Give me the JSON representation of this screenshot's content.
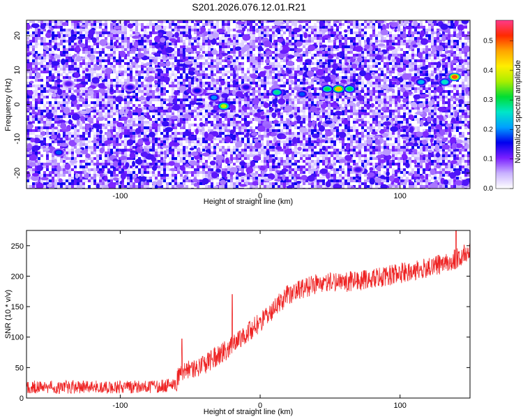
{
  "title": "S201.2026.076.12.01.R21",
  "colors": {
    "line": "#ee2222",
    "frame": "#000000",
    "colormap": [
      "#ffffff",
      "#c9b2ff",
      "#7a1fff",
      "#0000ee",
      "#00a0ff",
      "#00e6c8",
      "#00dd33",
      "#aaee00",
      "#ffee00",
      "#ffa500",
      "#ff2a00",
      "#ff3a8a"
    ]
  },
  "chart_data": [
    {
      "type": "heatmap",
      "title": "S201.2026.076.12.01.R21",
      "xlabel": "Height of straight line (km)",
      "ylabel": "Frequency (Hz)",
      "xlim": [
        -167,
        150
      ],
      "ylim": [
        -24.5,
        24.5
      ],
      "xticks": [
        "-100",
        "0",
        "100"
      ],
      "yticks": [
        "20",
        "10",
        "0",
        "-10",
        "-20"
      ],
      "colorbar_label": "Normalized spectral amplitude",
      "colorbar_range": [
        0.0,
        0.57
      ],
      "colorbar_ticks": [
        "0.0",
        "0.1",
        "0.2",
        "0.3",
        "0.4",
        "0.5"
      ],
      "background": "noisy purple/white speckle with amplitude mostly below 0.15",
      "peaks": [
        {
          "x": -144,
          "y": -14,
          "amp": 0.18
        },
        {
          "x": -137,
          "y": 6,
          "amp": 0.12
        },
        {
          "x": -93,
          "y": 5,
          "amp": 0.14
        },
        {
          "x": -45,
          "y": 4,
          "amp": 0.15
        },
        {
          "x": -33,
          "y": 2,
          "amp": 0.2
        },
        {
          "x": -26,
          "y": -0.5,
          "amp": 0.38
        },
        {
          "x": -10,
          "y": 5,
          "amp": 0.14
        },
        {
          "x": 12,
          "y": 3.5,
          "amp": 0.28
        },
        {
          "x": 30,
          "y": 3,
          "amp": 0.18
        },
        {
          "x": 48,
          "y": 4.5,
          "amp": 0.3
        },
        {
          "x": 56,
          "y": 4.5,
          "amp": 0.45
        },
        {
          "x": 64,
          "y": 4.5,
          "amp": 0.3
        },
        {
          "x": 70,
          "y": -19,
          "amp": 0.13
        },
        {
          "x": 115,
          "y": 6.5,
          "amp": 0.22
        },
        {
          "x": 132,
          "y": 6.5,
          "amp": 0.26
        },
        {
          "x": 139,
          "y": 8,
          "amp": 0.5
        }
      ]
    },
    {
      "type": "line",
      "xlabel": "Height of straight line (km)",
      "ylabel": "SNR (10 * v/v)",
      "xlim": [
        -167,
        150
      ],
      "ylim": [
        0,
        275
      ],
      "xticks": [
        "-100",
        "0",
        "100"
      ],
      "yticks": [
        "250",
        "200",
        "150",
        "100",
        "50",
        "0"
      ],
      "grid": false,
      "trend": {
        "x": [
          -167,
          -120,
          -80,
          -60,
          -58,
          -40,
          -20,
          0,
          20,
          40,
          60,
          80,
          100,
          120,
          140,
          150
        ],
        "y": [
          18,
          18,
          18,
          22,
          40,
          55,
          85,
          125,
          170,
          188,
          190,
          195,
          205,
          213,
          228,
          240
        ]
      },
      "spikes": [
        {
          "x": -56,
          "y": 97
        },
        {
          "x": -20,
          "y": 170
        },
        {
          "x": 140,
          "y": 275
        }
      ],
      "noise_amplitude": 24
    }
  ]
}
